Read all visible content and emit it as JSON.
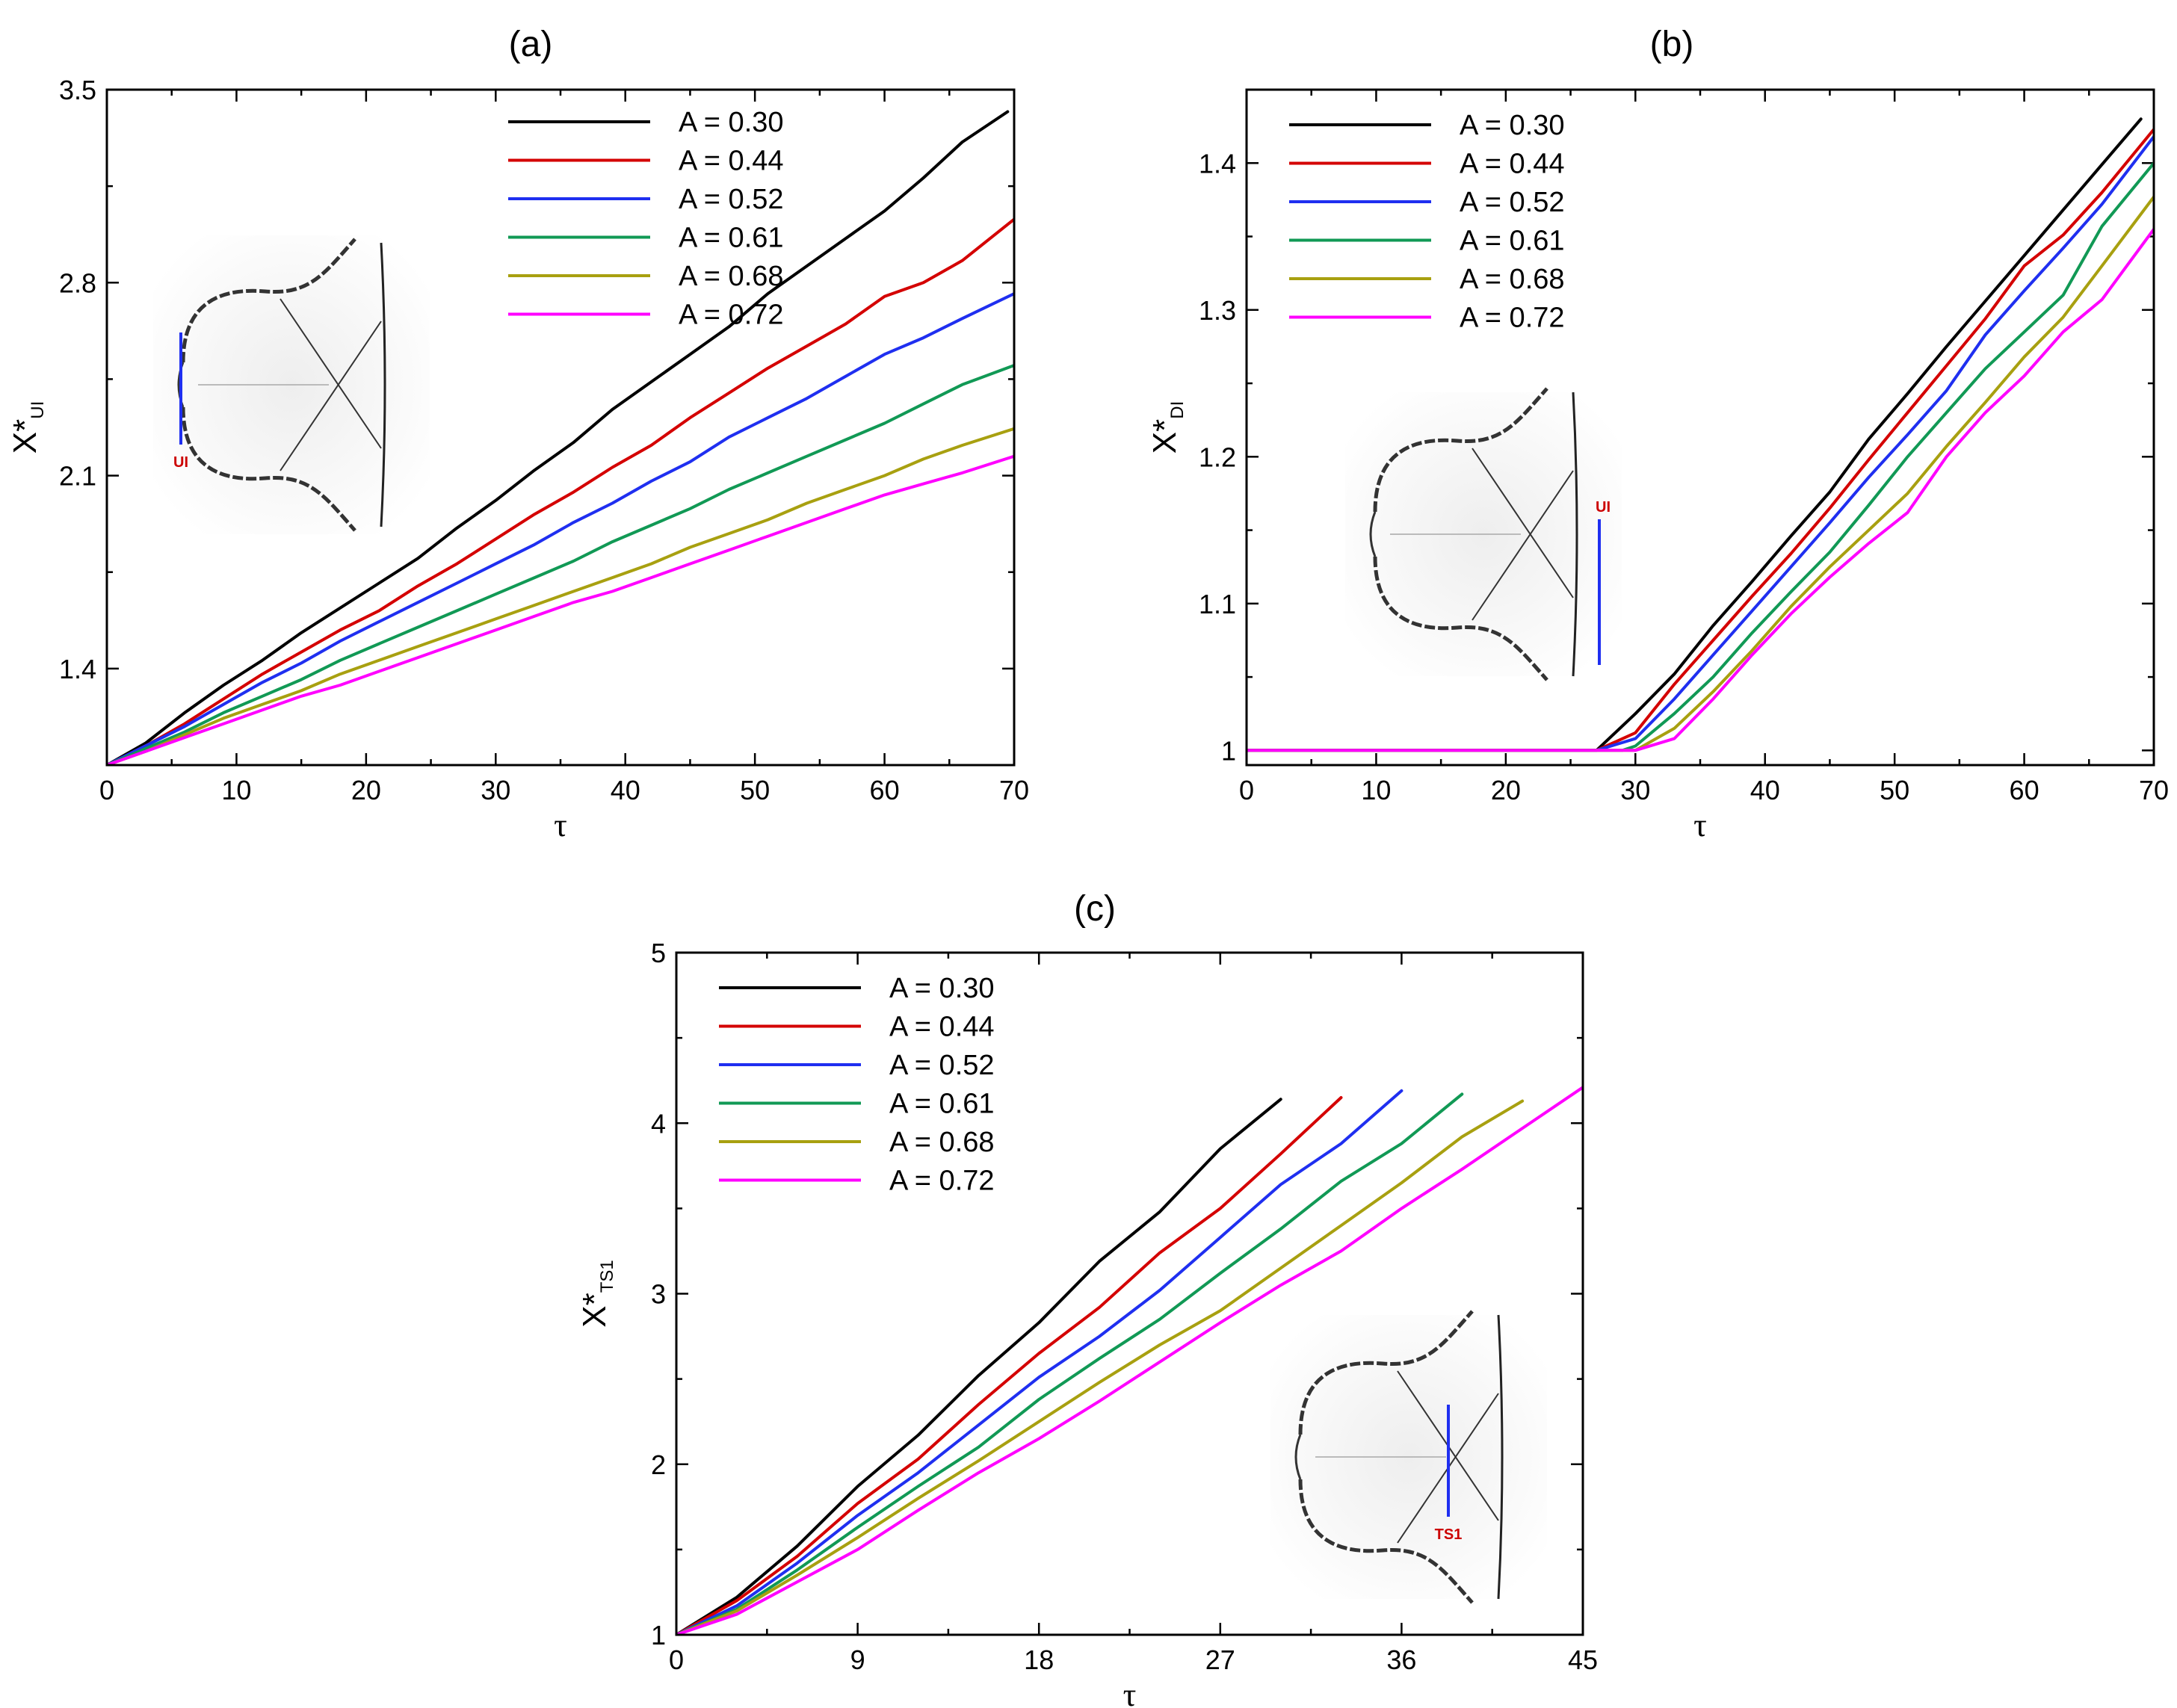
{
  "colors": {
    "A = 0.30": "#000000",
    "A = 0.44": "#d40000",
    "A = 0.52": "#1f2ff0",
    "A = 0.61": "#119955",
    "A = 0.68": "#a8a010",
    "A = 0.72": "#ff00ff"
  },
  "chart_data": [
    {
      "type": "line",
      "title": "(a)",
      "xlabel": "τ",
      "ylabel": "X*",
      "ylabel_sub": "UI",
      "xlim": [
        0,
        70
      ],
      "ylim": [
        1.05,
        3.5
      ],
      "xticks": [
        0,
        10,
        20,
        30,
        40,
        50,
        60,
        70
      ],
      "yticks": [
        1.4,
        2.1,
        2.8,
        3.5
      ],
      "legend": "top-left",
      "inset_label": "UI",
      "series": [
        {
          "name": "A = 0.30",
          "x": [
            0,
            3,
            6,
            9,
            12,
            15,
            18,
            21,
            24,
            27,
            30,
            33,
            36,
            39,
            42,
            45,
            48,
            51,
            54,
            57,
            60,
            63,
            66,
            69.5
          ],
          "values": [
            1.05,
            1.13,
            1.24,
            1.34,
            1.43,
            1.53,
            1.62,
            1.71,
            1.8,
            1.91,
            2.01,
            2.12,
            2.22,
            2.34,
            2.44,
            2.54,
            2.64,
            2.76,
            2.86,
            2.96,
            3.06,
            3.18,
            3.31,
            3.42
          ]
        },
        {
          "name": "A = 0.44",
          "x": [
            0,
            3,
            6,
            9,
            12,
            15,
            18,
            21,
            24,
            27,
            30,
            33,
            36,
            39,
            42,
            45,
            48,
            51,
            54,
            57,
            60,
            63,
            66,
            70
          ],
          "values": [
            1.05,
            1.12,
            1.2,
            1.29,
            1.38,
            1.46,
            1.54,
            1.61,
            1.7,
            1.78,
            1.87,
            1.96,
            2.04,
            2.13,
            2.21,
            2.31,
            2.4,
            2.49,
            2.57,
            2.65,
            2.75,
            2.8,
            2.88,
            3.03
          ]
        },
        {
          "name": "A = 0.52",
          "x": [
            0,
            3,
            6,
            9,
            12,
            15,
            18,
            21,
            24,
            27,
            30,
            33,
            36,
            39,
            42,
            45,
            48,
            51,
            54,
            57,
            60,
            63,
            66,
            70
          ],
          "values": [
            1.05,
            1.12,
            1.19,
            1.27,
            1.35,
            1.42,
            1.5,
            1.57,
            1.64,
            1.71,
            1.78,
            1.85,
            1.93,
            2.0,
            2.08,
            2.15,
            2.24,
            2.31,
            2.38,
            2.46,
            2.54,
            2.6,
            2.67,
            2.76
          ]
        },
        {
          "name": "A = 0.61",
          "x": [
            0,
            3,
            6,
            9,
            12,
            15,
            18,
            21,
            24,
            27,
            30,
            33,
            36,
            39,
            42,
            45,
            48,
            51,
            54,
            57,
            60,
            63,
            66,
            70
          ],
          "values": [
            1.05,
            1.11,
            1.17,
            1.24,
            1.3,
            1.36,
            1.43,
            1.49,
            1.55,
            1.61,
            1.67,
            1.73,
            1.79,
            1.86,
            1.92,
            1.98,
            2.05,
            2.11,
            2.17,
            2.23,
            2.29,
            2.36,
            2.43,
            2.5
          ]
        },
        {
          "name": "A = 0.68",
          "x": [
            0,
            3,
            6,
            9,
            12,
            15,
            18,
            21,
            24,
            27,
            30,
            33,
            36,
            39,
            42,
            45,
            48,
            51,
            54,
            57,
            60,
            63,
            66,
            70
          ],
          "values": [
            1.05,
            1.1,
            1.16,
            1.22,
            1.27,
            1.32,
            1.38,
            1.43,
            1.48,
            1.53,
            1.58,
            1.63,
            1.68,
            1.73,
            1.78,
            1.84,
            1.89,
            1.94,
            2.0,
            2.05,
            2.1,
            2.16,
            2.21,
            2.27
          ]
        },
        {
          "name": "A = 0.72",
          "x": [
            0,
            3,
            6,
            9,
            12,
            15,
            18,
            21,
            24,
            27,
            30,
            33,
            36,
            39,
            42,
            45,
            48,
            51,
            54,
            57,
            60,
            63,
            66,
            70
          ],
          "values": [
            1.05,
            1.1,
            1.15,
            1.2,
            1.25,
            1.3,
            1.34,
            1.39,
            1.44,
            1.49,
            1.54,
            1.59,
            1.64,
            1.68,
            1.73,
            1.78,
            1.83,
            1.88,
            1.93,
            1.98,
            2.03,
            2.07,
            2.11,
            2.17
          ]
        }
      ]
    },
    {
      "type": "line",
      "title": "(b)",
      "xlabel": "τ",
      "ylabel": "X*",
      "ylabel_sub": "DI",
      "xlim": [
        0,
        70
      ],
      "ylim": [
        0.99,
        1.45
      ],
      "xticks": [
        0,
        10,
        20,
        30,
        40,
        50,
        60,
        70
      ],
      "yticks": [
        1,
        1.1,
        1.2,
        1.3,
        1.4
      ],
      "ytick_labels": [
        "1",
        "1.1",
        "1.2",
        "1.3",
        "1.4"
      ],
      "legend": "top-left",
      "inset_label": "UI",
      "series": [
        {
          "name": "A = 0.30",
          "x": [
            0,
            27,
            30,
            33,
            36,
            39,
            42,
            45,
            48,
            51,
            54,
            57,
            60,
            63,
            66,
            69
          ],
          "values": [
            1.0,
            1.0,
            1.025,
            1.052,
            1.085,
            1.115,
            1.146,
            1.176,
            1.212,
            1.243,
            1.275,
            1.306,
            1.337,
            1.368,
            1.399,
            1.43
          ]
        },
        {
          "name": "A = 0.44",
          "x": [
            0,
            27,
            30,
            33,
            36,
            39,
            42,
            45,
            48,
            51,
            54,
            57,
            60,
            63,
            66,
            70
          ],
          "values": [
            1.0,
            1.0,
            1.012,
            1.045,
            1.075,
            1.105,
            1.134,
            1.165,
            1.198,
            1.23,
            1.262,
            1.294,
            1.33,
            1.351,
            1.38,
            1.423
          ]
        },
        {
          "name": "A = 0.52",
          "x": [
            0,
            27,
            30,
            33,
            36,
            39,
            42,
            45,
            48,
            51,
            54,
            57,
            60,
            63,
            66,
            70
          ],
          "values": [
            1.0,
            1.0,
            1.008,
            1.035,
            1.065,
            1.095,
            1.125,
            1.155,
            1.186,
            1.215,
            1.245,
            1.283,
            1.313,
            1.342,
            1.372,
            1.418
          ]
        },
        {
          "name": "A = 0.61",
          "x": [
            0,
            29,
            30,
            33,
            36,
            39,
            42,
            45,
            48,
            51,
            54,
            57,
            60,
            63,
            66,
            70
          ],
          "values": [
            1.0,
            1.0,
            1.003,
            1.025,
            1.05,
            1.08,
            1.108,
            1.135,
            1.167,
            1.2,
            1.23,
            1.26,
            1.285,
            1.31,
            1.357,
            1.4
          ]
        },
        {
          "name": "A = 0.68",
          "x": [
            0,
            30,
            33,
            36,
            39,
            42,
            45,
            48,
            51,
            54,
            57,
            60,
            63,
            66,
            70
          ],
          "values": [
            1.0,
            1.0,
            1.015,
            1.04,
            1.068,
            1.098,
            1.125,
            1.15,
            1.175,
            1.207,
            1.237,
            1.268,
            1.295,
            1.33,
            1.377
          ]
        },
        {
          "name": "A = 0.72",
          "x": [
            0,
            30,
            33,
            36,
            39,
            42,
            45,
            48,
            51,
            54,
            57,
            60,
            63,
            66,
            70
          ],
          "values": [
            1.0,
            1.0,
            1.008,
            1.035,
            1.065,
            1.093,
            1.118,
            1.141,
            1.162,
            1.2,
            1.23,
            1.255,
            1.285,
            1.307,
            1.355
          ]
        }
      ]
    },
    {
      "type": "line",
      "title": "(c)",
      "xlabel": "τ",
      "ylabel": "X*",
      "ylabel_sub": "TS1",
      "xlim": [
        0,
        45
      ],
      "ylim": [
        1,
        5
      ],
      "xticks": [
        0,
        9,
        18,
        27,
        36,
        45
      ],
      "yticks": [
        1,
        2,
        3,
        4,
        5
      ],
      "legend": "top-left",
      "inset_label": "TS1",
      "series": [
        {
          "name": "A = 0.30",
          "x": [
            0,
            3,
            6,
            9,
            12,
            15,
            18,
            21,
            24,
            27,
            30
          ],
          "values": [
            1.0,
            1.22,
            1.52,
            1.87,
            2.17,
            2.52,
            2.83,
            3.19,
            3.48,
            3.85,
            4.14
          ]
        },
        {
          "name": "A = 0.44",
          "x": [
            0,
            3,
            6,
            9,
            12,
            15,
            18,
            21,
            24,
            27,
            30,
            33
          ],
          "values": [
            1.0,
            1.2,
            1.46,
            1.77,
            2.03,
            2.35,
            2.65,
            2.92,
            3.24,
            3.5,
            3.82,
            4.15
          ]
        },
        {
          "name": "A = 0.52",
          "x": [
            0,
            3,
            6,
            9,
            12,
            15,
            18,
            21,
            24,
            27,
            30,
            33,
            36
          ],
          "values": [
            1.0,
            1.17,
            1.42,
            1.7,
            1.95,
            2.23,
            2.51,
            2.75,
            3.02,
            3.33,
            3.64,
            3.88,
            4.19
          ]
        },
        {
          "name": "A = 0.61",
          "x": [
            0,
            3,
            6,
            9,
            12,
            15,
            18,
            21,
            24,
            27,
            30,
            33,
            36,
            39
          ],
          "values": [
            1.0,
            1.15,
            1.38,
            1.63,
            1.87,
            2.1,
            2.38,
            2.62,
            2.85,
            3.12,
            3.38,
            3.66,
            3.88,
            4.17
          ]
        },
        {
          "name": "A = 0.68",
          "x": [
            0,
            3,
            6,
            9,
            12,
            15,
            18,
            21,
            24,
            27,
            30,
            33,
            36,
            39,
            42
          ],
          "values": [
            1.0,
            1.14,
            1.35,
            1.57,
            1.8,
            2.02,
            2.25,
            2.48,
            2.7,
            2.9,
            3.15,
            3.4,
            3.65,
            3.92,
            4.13
          ]
        },
        {
          "name": "A = 0.72",
          "x": [
            0,
            3,
            6,
            9,
            12,
            15,
            18,
            21,
            24,
            27,
            30,
            33,
            36,
            39,
            42,
            45
          ],
          "values": [
            1.0,
            1.12,
            1.31,
            1.5,
            1.73,
            1.95,
            2.15,
            2.37,
            2.6,
            2.83,
            3.05,
            3.25,
            3.5,
            3.73,
            3.97,
            4.21
          ]
        }
      ]
    }
  ]
}
